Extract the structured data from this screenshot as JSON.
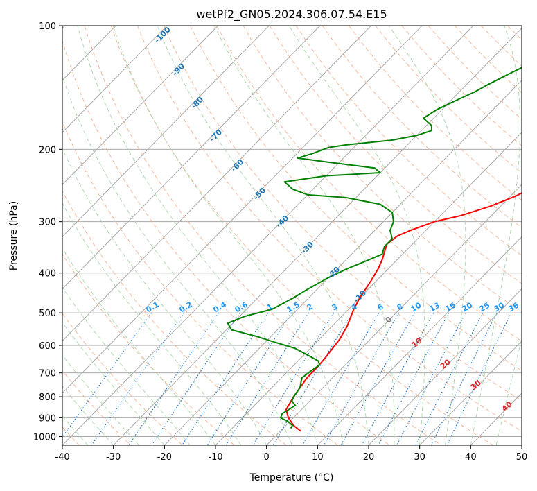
{
  "chart_data": {
    "type": "line",
    "subtype": "skew-t log-p diagram",
    "title": "wetPf2_GN05.2024.306.07.54.E15",
    "xlabel": "Temperature (°C)",
    "ylabel": "Pressure (hPa)",
    "xlim": [
      -40,
      50
    ],
    "ylim": [
      1050,
      100
    ],
    "y_scale": "log",
    "x_ticks": [
      -40,
      -30,
      -20,
      -10,
      0,
      10,
      20,
      30,
      40,
      50
    ],
    "y_ticks": [
      100,
      200,
      300,
      400,
      500,
      600,
      700,
      800,
      900,
      1000
    ],
    "grid": true,
    "colors": {
      "temperature": "#ff0000",
      "dewpoint": "#008000",
      "isotherm": "#aaaaaa",
      "dry_adiabat": "#f4a582",
      "moist_adiabat": "#a6d5a6",
      "mixing_ratio": "#2a7fd4",
      "dry_label": "#1f77b4",
      "moist_label": "#d62728"
    },
    "series": [
      {
        "name": "",
        "color": "#ff0000",
        "points": [
          [
            4.0,
            970
          ],
          [
            1.5,
            940
          ],
          [
            -1.0,
            900
          ],
          [
            -3.0,
            860
          ],
          [
            -4.0,
            800
          ],
          [
            -5.0,
            720
          ],
          [
            -5.0,
            680
          ],
          [
            -5.3,
            640
          ],
          [
            -6.0,
            580
          ],
          [
            -7.0,
            540
          ],
          [
            -9.0,
            490
          ],
          [
            -10.0,
            460
          ],
          [
            -11.0,
            420
          ],
          [
            -12.0,
            390
          ],
          [
            -13.0,
            370
          ],
          [
            -14.0,
            355
          ],
          [
            -15.0,
            340
          ],
          [
            -14.5,
            325
          ],
          [
            -13.0,
            315
          ],
          [
            -10.0,
            300
          ],
          [
            -6.0,
            290
          ],
          [
            -2.0,
            275
          ],
          [
            1.0,
            260
          ],
          [
            3.0,
            245
          ],
          [
            5.0,
            230
          ],
          [
            8.0,
            215
          ],
          [
            10.0,
            200
          ],
          [
            14.0,
            180
          ],
          [
            18.0,
            160
          ],
          [
            22.0,
            140
          ],
          [
            26.0,
            122
          ],
          [
            30.0,
            108
          ],
          [
            32.0,
            100
          ]
        ]
      },
      {
        "name": "",
        "color": "#008000",
        "points": [
          [
            1.5,
            955
          ],
          [
            1.3,
            940
          ],
          [
            -0.3,
            920
          ],
          [
            -2.5,
            900
          ],
          [
            -3.0,
            880
          ],
          [
            -2.0,
            840
          ],
          [
            -3.5,
            820
          ],
          [
            -4.0,
            800
          ],
          [
            -4.5,
            760
          ],
          [
            -6.0,
            720
          ],
          [
            -5.5,
            690
          ],
          [
            -5.0,
            670
          ],
          [
            -6.0,
            655
          ],
          [
            -9.0,
            635
          ],
          [
            -13.0,
            610
          ],
          [
            -18.0,
            590
          ],
          [
            -23.0,
            570
          ],
          [
            -29.0,
            550
          ],
          [
            -31.0,
            530
          ],
          [
            -29.0,
            510
          ],
          [
            -25.0,
            490
          ],
          [
            -23.0,
            460
          ],
          [
            -22.0,
            440
          ],
          [
            -20.0,
            410
          ],
          [
            -18.0,
            390
          ],
          [
            -16.0,
            375
          ],
          [
            -14.0,
            360
          ],
          [
            -15.0,
            345
          ],
          [
            -15.0,
            330
          ],
          [
            -17.0,
            315
          ],
          [
            -18.0,
            300
          ],
          [
            -20.0,
            285
          ],
          [
            -24.0,
            272
          ],
          [
            -32.0,
            262
          ],
          [
            -40.0,
            258
          ],
          [
            -44.0,
            250
          ],
          [
            -47.0,
            240
          ],
          [
            -40.0,
            232
          ],
          [
            -30.0,
            228
          ],
          [
            -32.0,
            222
          ],
          [
            -42.0,
            215
          ],
          [
            -49.0,
            210
          ],
          [
            -47.0,
            205
          ],
          [
            -45.0,
            198
          ],
          [
            -42.0,
            195
          ],
          [
            -34.0,
            190
          ],
          [
            -30.0,
            185
          ],
          [
            -28.0,
            180
          ],
          [
            -29.0,
            175
          ],
          [
            -32.0,
            168
          ],
          [
            -31.0,
            160
          ],
          [
            -29.0,
            152
          ],
          [
            -27.0,
            145
          ],
          [
            -26.0,
            140
          ],
          [
            -24.0,
            132
          ],
          [
            -22.0,
            125
          ],
          [
            -20.0,
            118
          ],
          [
            -18.5,
            112
          ],
          [
            -18.0,
            105
          ],
          [
            -18.0,
            100
          ]
        ]
      }
    ],
    "dry_adiabat_labels": [
      "-100",
      "-90",
      "-80",
      "-70",
      "-60",
      "-50",
      "-40",
      "-30",
      "-20",
      "-10"
    ],
    "mixing_ratio_labels": [
      "0.1",
      "0.2",
      "0.4",
      "0.6",
      "1",
      "1.5",
      "2",
      "3",
      "4",
      "6",
      "8",
      "10",
      "13",
      "16",
      "20",
      "25",
      "30",
      "36"
    ],
    "moist_adiabat_labels": [
      "0",
      "10",
      "20",
      "30",
      "40"
    ]
  }
}
